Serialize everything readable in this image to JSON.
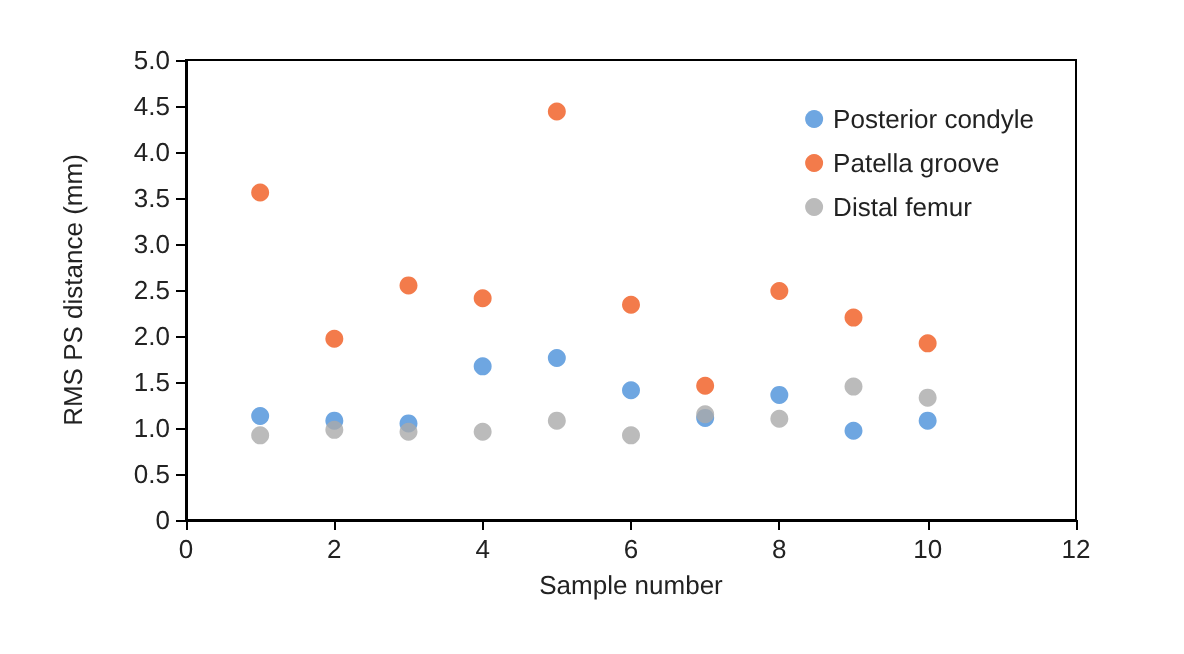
{
  "chart_data": {
    "type": "scatter",
    "xlabel": "Sample number",
    "ylabel": "RMS PS distance (mm)",
    "x": [
      1,
      2,
      3,
      4,
      5,
      6,
      7,
      8,
      9,
      10
    ],
    "series": [
      {
        "name": "Posterior condyle",
        "color": "#4a90d9",
        "values": [
          1.13,
          1.08,
          1.05,
          1.67,
          1.76,
          1.41,
          1.11,
          1.36,
          0.97,
          1.08
        ]
      },
      {
        "name": "Patella groove",
        "color": "#f05a1e",
        "values": [
          3.56,
          1.97,
          2.55,
          2.41,
          4.44,
          2.34,
          1.46,
          2.49,
          2.2,
          1.92
        ]
      },
      {
        "name": "Distal femur",
        "color": "#aaaaaa",
        "values": [
          0.92,
          0.98,
          0.96,
          0.96,
          1.08,
          0.92,
          1.15,
          1.1,
          1.45,
          1.33
        ]
      }
    ],
    "xlim": [
      0,
      12
    ],
    "xticks": [
      0,
      2,
      4,
      6,
      8,
      10,
      12
    ],
    "ylim": [
      0,
      5
    ],
    "yticks": [
      0,
      {
        "value": 0.5,
        "label": "0.5"
      },
      {
        "value": 1,
        "label": "1.0"
      },
      {
        "value": 1.5,
        "label": "1.5"
      },
      {
        "value": 2,
        "label": "2.0"
      },
      {
        "value": 2.5,
        "label": "2.5"
      },
      {
        "value": 3,
        "label": "3.0"
      },
      {
        "value": 3.5,
        "label": "3.5"
      },
      {
        "value": 4,
        "label": "4.0"
      },
      {
        "value": 4.5,
        "label": "4.5"
      },
      {
        "value": 5,
        "label": "5.0"
      }
    ],
    "grid": false,
    "legend": "top right",
    "marker": "circle"
  }
}
